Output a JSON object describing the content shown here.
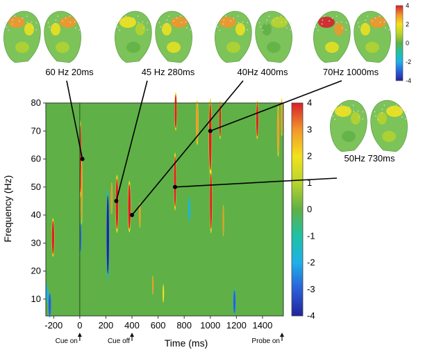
{
  "chart_data": {
    "type": "heatmap",
    "xlabel": "Time (ms)",
    "ylabel": "Frequency (Hz)",
    "xlim": [
      -260,
      1560
    ],
    "ylim": [
      4,
      80
    ],
    "xticks": [
      -200,
      0,
      200,
      400,
      600,
      800,
      1000,
      1200,
      1400
    ],
    "xtick_labels": [
      "-200",
      "0",
      "200",
      "400",
      "600",
      "800",
      "1000",
      "1200",
      "1400"
    ],
    "yticks": [
      10,
      20,
      30,
      40,
      50,
      60,
      70,
      80
    ],
    "ytick_labels": [
      "10",
      "20",
      "30",
      "40",
      "50",
      "60",
      "70",
      "80"
    ],
    "colorbar": {
      "range": [
        -4,
        4
      ],
      "ticks": [
        4,
        3,
        2,
        1,
        0,
        -1,
        -2,
        -3,
        -4
      ],
      "tick_labels": [
        "4",
        "3",
        "2",
        "1",
        "0",
        "-1",
        "-2",
        "-3",
        "-4"
      ],
      "colors": [
        "#22249a",
        "#2a5fd8",
        "#1fb0e8",
        "#1fc2a4",
        "#5fb046",
        "#b8d42c",
        "#f2e21c",
        "#f2962a",
        "#d8202c"
      ]
    },
    "background_value": 0,
    "event_markers": [
      {
        "label": "Cue on",
        "time": 0
      },
      {
        "label": "Cue off",
        "time": 400
      },
      {
        "label": "Probe on",
        "time": 1560
      }
    ],
    "vertical_line_time": 0,
    "blobs": [
      {
        "t": -205,
        "f": 32,
        "dt": 9,
        "df": 6,
        "value": 3.8
      },
      {
        "t": -230,
        "f": 8,
        "dt": 9,
        "df": 4,
        "value": -3.5
      },
      {
        "t": -250,
        "f": 12,
        "dt": 6,
        "df": 3,
        "value": -2.5
      },
      {
        "t": 5,
        "f": 60,
        "dt": 6,
        "df": 12,
        "value": 3.5
      },
      {
        "t": 15,
        "f": 48,
        "dt": 5,
        "df": 10,
        "value": 3
      },
      {
        "t": 5,
        "f": 32,
        "dt": 6,
        "df": 5,
        "value": -2.8
      },
      {
        "t": 215,
        "f": 33,
        "dt": 9,
        "df": 14,
        "value": -3.8
      },
      {
        "t": 245,
        "f": 46,
        "dt": 6,
        "df": 5,
        "value": 2.5
      },
      {
        "t": 285,
        "f": 44,
        "dt": 10,
        "df": 9,
        "value": 3.6
      },
      {
        "t": 380,
        "f": 43,
        "dt": 10,
        "df": 8,
        "value": 3.5
      },
      {
        "t": 460,
        "f": 40,
        "dt": 6,
        "df": 4,
        "value": 2.8
      },
      {
        "t": 560,
        "f": 15,
        "dt": 5,
        "df": 3,
        "value": 2.5
      },
      {
        "t": 640,
        "f": 12,
        "dt": 5,
        "df": 3,
        "value": 2.2
      },
      {
        "t": 735,
        "f": 77,
        "dt": 8,
        "df": 6,
        "value": 3.5
      },
      {
        "t": 730,
        "f": 52,
        "dt": 8,
        "df": 9,
        "value": 3.5
      },
      {
        "t": 840,
        "f": 42,
        "dt": 7,
        "df": 4,
        "value": -2.5
      },
      {
        "t": 900,
        "f": 73,
        "dt": 8,
        "df": 7,
        "value": 3.4
      },
      {
        "t": 1000,
        "f": 68,
        "dt": 10,
        "df": 12,
        "value": 3.8
      },
      {
        "t": 1005,
        "f": 45,
        "dt": 8,
        "df": 10,
        "value": 3.6
      },
      {
        "t": 1075,
        "f": 74,
        "dt": 7,
        "df": 6,
        "value": 3.5
      },
      {
        "t": 1100,
        "f": 38,
        "dt": 5,
        "df": 5,
        "value": 2.5
      },
      {
        "t": 1185,
        "f": 9,
        "dt": 8,
        "df": 4,
        "value": -3.5
      },
      {
        "t": 1360,
        "f": 74,
        "dt": 8,
        "df": 6,
        "value": 3.5
      },
      {
        "t": 1520,
        "f": 70,
        "dt": 7,
        "df": 8,
        "value": 3.4
      },
      {
        "t": 1548,
        "f": 75,
        "dt": 6,
        "df": 6,
        "value": 3.2
      }
    ],
    "annotations": [
      {
        "label": "60 Hz  20ms",
        "time": 20,
        "freq": 60,
        "topo_value_left": 2.5,
        "topo_value_right": 2.5
      },
      {
        "label": "45 Hz  280ms",
        "time": 280,
        "freq": 45,
        "topo_value_left": 1.5,
        "topo_value_right": 3
      },
      {
        "label": "40Hz  400ms",
        "time": 400,
        "freq": 40,
        "topo_value_left": 2.8,
        "topo_value_right": 0.5
      },
      {
        "label": "70Hz  1000ms",
        "time": 1000,
        "freq": 70,
        "topo_value_left": 3.5,
        "topo_value_right": 2.5
      },
      {
        "label": "50Hz  730ms",
        "time": 730,
        "freq": 50,
        "topo_value_left": 1.5,
        "topo_value_right": 2
      }
    ],
    "topo_colorbar": {
      "range": [
        -4,
        4
      ],
      "ticks": [
        4,
        2,
        0,
        -2,
        -4
      ],
      "tick_labels": [
        "4",
        "2",
        "0",
        "-2",
        "-4"
      ]
    }
  }
}
